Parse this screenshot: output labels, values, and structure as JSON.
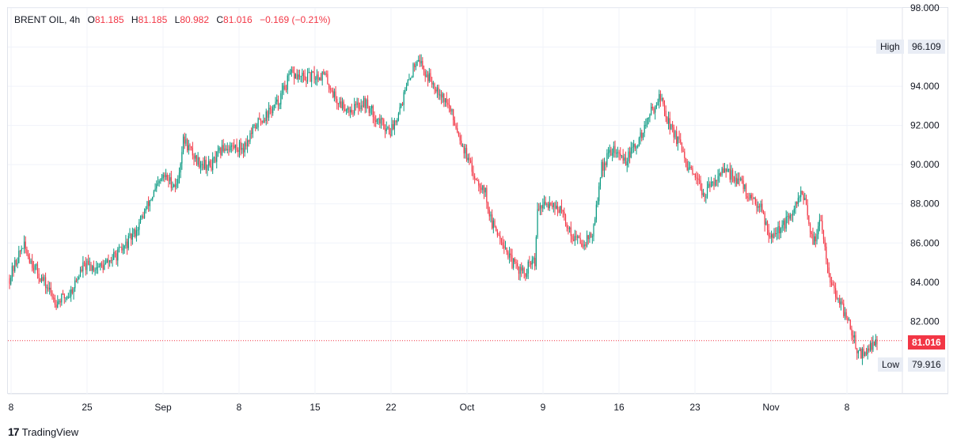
{
  "header": {
    "symbol": "BRENT OIL",
    "interval": "4h",
    "o_label": "O",
    "o_value": "81.185",
    "h_label": "H",
    "h_value": "81.185",
    "l_label": "L",
    "l_value": "80.982",
    "c_label": "C",
    "c_value": "81.016",
    "change": "−0.169 (−0.21%)"
  },
  "markers": {
    "high_label": "High",
    "high_value": "96.109",
    "low_label": "Low",
    "low_value": "79.916",
    "last_price": "81.016"
  },
  "brand": {
    "logo": "17",
    "name": "TradingView"
  },
  "colors": {
    "up": "#089981",
    "down": "#f23645",
    "grid": "#f0f3fa",
    "text": "#131722"
  },
  "chart_data": {
    "type": "candlestick",
    "title": "BRENT OIL, 4h",
    "y_ticks": [
      "82.000",
      "84.000",
      "86.000",
      "88.000",
      "90.000",
      "92.000",
      "94.000",
      "96.000",
      "98.000"
    ],
    "ylim": [
      78.3,
      98.0
    ],
    "x_ticks": [
      "8",
      "25",
      "Sep",
      "8",
      "15",
      "22",
      "Oct",
      "9",
      "16",
      "23",
      "Nov",
      "8"
    ],
    "grid": true,
    "last_price": 81.016,
    "high": 96.109,
    "low": 79.916,
    "anchors": [
      [
        0,
        84.2
      ],
      [
        10,
        85.9
      ],
      [
        20,
        84.6
      ],
      [
        35,
        83.0
      ],
      [
        45,
        83.4
      ],
      [
        55,
        84.8
      ],
      [
        70,
        84.8
      ],
      [
        85,
        85.7
      ],
      [
        95,
        86.7
      ],
      [
        105,
        88.2
      ],
      [
        115,
        89.4
      ],
      [
        125,
        88.9
      ],
      [
        130,
        91.3
      ],
      [
        140,
        90.2
      ],
      [
        150,
        89.9
      ],
      [
        160,
        90.9
      ],
      [
        175,
        90.9
      ],
      [
        185,
        92.1
      ],
      [
        200,
        93.1
      ],
      [
        210,
        94.6
      ],
      [
        220,
        94.4
      ],
      [
        235,
        94.6
      ],
      [
        245,
        93.2
      ],
      [
        255,
        92.8
      ],
      [
        265,
        93.2
      ],
      [
        275,
        92.3
      ],
      [
        285,
        91.7
      ],
      [
        295,
        93.6
      ],
      [
        305,
        95.6
      ],
      [
        310,
        94.7
      ],
      [
        320,
        93.9
      ],
      [
        328,
        93.0
      ],
      [
        335,
        91.7
      ],
      [
        345,
        89.7
      ],
      [
        355,
        88.7
      ],
      [
        360,
        87.0
      ],
      [
        368,
        86.2
      ],
      [
        375,
        85.0
      ],
      [
        382,
        84.6
      ],
      [
        386,
        84.3
      ],
      [
        387,
        84.7
      ],
      [
        390,
        85.1
      ],
      [
        393,
        84.9
      ],
      [
        394,
        87.7
      ],
      [
        405,
        88.1
      ],
      [
        412,
        87.6
      ],
      [
        420,
        86.4
      ],
      [
        428,
        86.0
      ],
      [
        436,
        86.5
      ],
      [
        442,
        89.8
      ],
      [
        450,
        90.8
      ],
      [
        460,
        90.2
      ],
      [
        470,
        91.2
      ],
      [
        480,
        92.8
      ],
      [
        486,
        93.5
      ],
      [
        492,
        92.2
      ],
      [
        500,
        91.1
      ],
      [
        506,
        89.9
      ],
      [
        512,
        89.2
      ],
      [
        520,
        88.5
      ],
      [
        530,
        89.6
      ],
      [
        540,
        89.5
      ],
      [
        548,
        88.9
      ],
      [
        555,
        88.0
      ],
      [
        560,
        88.1
      ],
      [
        568,
        86.4
      ],
      [
        575,
        86.7
      ],
      [
        585,
        87.4
      ],
      [
        592,
        88.8
      ],
      [
        600,
        85.9
      ],
      [
        606,
        87.3
      ],
      [
        612,
        84.5
      ],
      [
        618,
        83.1
      ],
      [
        625,
        82.3
      ],
      [
        630,
        81.2
      ],
      [
        635,
        80.3
      ],
      [
        642,
        80.6
      ],
      [
        648,
        81.0
      ]
    ],
    "n_candles": 650
  }
}
